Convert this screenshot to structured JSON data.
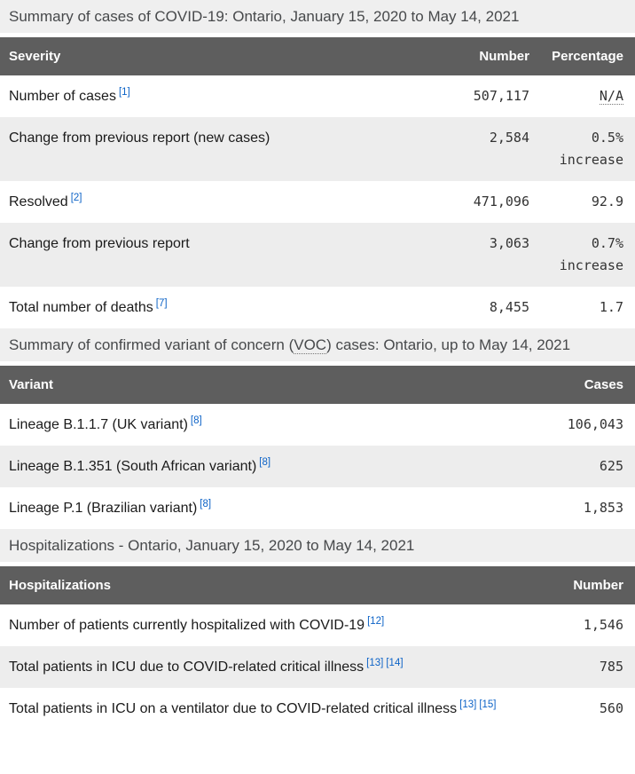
{
  "theme": {
    "header_row_bg": "#5e5e5e",
    "header_row_text": "#ffffff",
    "caption_bg": "#efefef",
    "zebra_row_bg": "#ededed",
    "footnote_link_color": "#0d63c7",
    "body_text_color": "#1b1b1b"
  },
  "cases_table": {
    "title": "Summary of cases of COVID-19: Ontario, January 15, 2020 to May 14, 2021",
    "columns": {
      "severity": "Severity",
      "number": "Number",
      "percentage": "Percentage"
    },
    "rows": [
      {
        "label": "Number of cases",
        "footnotes": [
          "[1]"
        ],
        "number": "507,117",
        "percentage": "N/A"
      },
      {
        "label": "Change from previous report (new cases)",
        "footnotes": [],
        "number": "2,584",
        "percentage": "0.5% increase"
      },
      {
        "label": "Resolved",
        "footnotes": [
          "[2]"
        ],
        "number": "471,096",
        "percentage": "92.9"
      },
      {
        "label": "Change from previous report",
        "footnotes": [],
        "number": "3,063",
        "percentage": "0.7% increase"
      },
      {
        "label": "Total number of deaths",
        "footnotes": [
          "[7]"
        ],
        "number": "8,455",
        "percentage": "1.7"
      }
    ]
  },
  "voc_table": {
    "title_pre": "Summary of confirmed variant of concern (",
    "title_abbr": "VOC",
    "title_post": ") cases: Ontario, up to May 14, 2021",
    "columns": {
      "variant": "Variant",
      "cases": "Cases"
    },
    "rows": [
      {
        "label": "Lineage B.1.1.7 (UK variant)",
        "footnotes": [
          "[8]"
        ],
        "cases": "106,043"
      },
      {
        "label": "Lineage B.1.351 (South African variant)",
        "footnotes": [
          "[8]"
        ],
        "cases": "625"
      },
      {
        "label": "Lineage P.1 (Brazilian variant)",
        "footnotes": [
          "[8]"
        ],
        "cases": "1,853"
      }
    ]
  },
  "hospitalizations_table": {
    "title": "Hospitalizations - Ontario, January 15, 2020 to May 14, 2021",
    "columns": {
      "hospitalizations": "Hospitalizations",
      "number": "Number"
    },
    "rows": [
      {
        "label": "Number of patients currently hospitalized with COVID-19",
        "footnotes": [
          "[12]"
        ],
        "number": "1,546"
      },
      {
        "label": "Total patients in ICU due to COVID-related critical illness",
        "footnotes": [
          "[13]",
          "[14]"
        ],
        "number": "785"
      },
      {
        "label": "Total patients in ICU on a ventilator due to COVID-related critical illness",
        "footnotes": [
          "[13]",
          "[15]"
        ],
        "number": "560"
      }
    ]
  }
}
